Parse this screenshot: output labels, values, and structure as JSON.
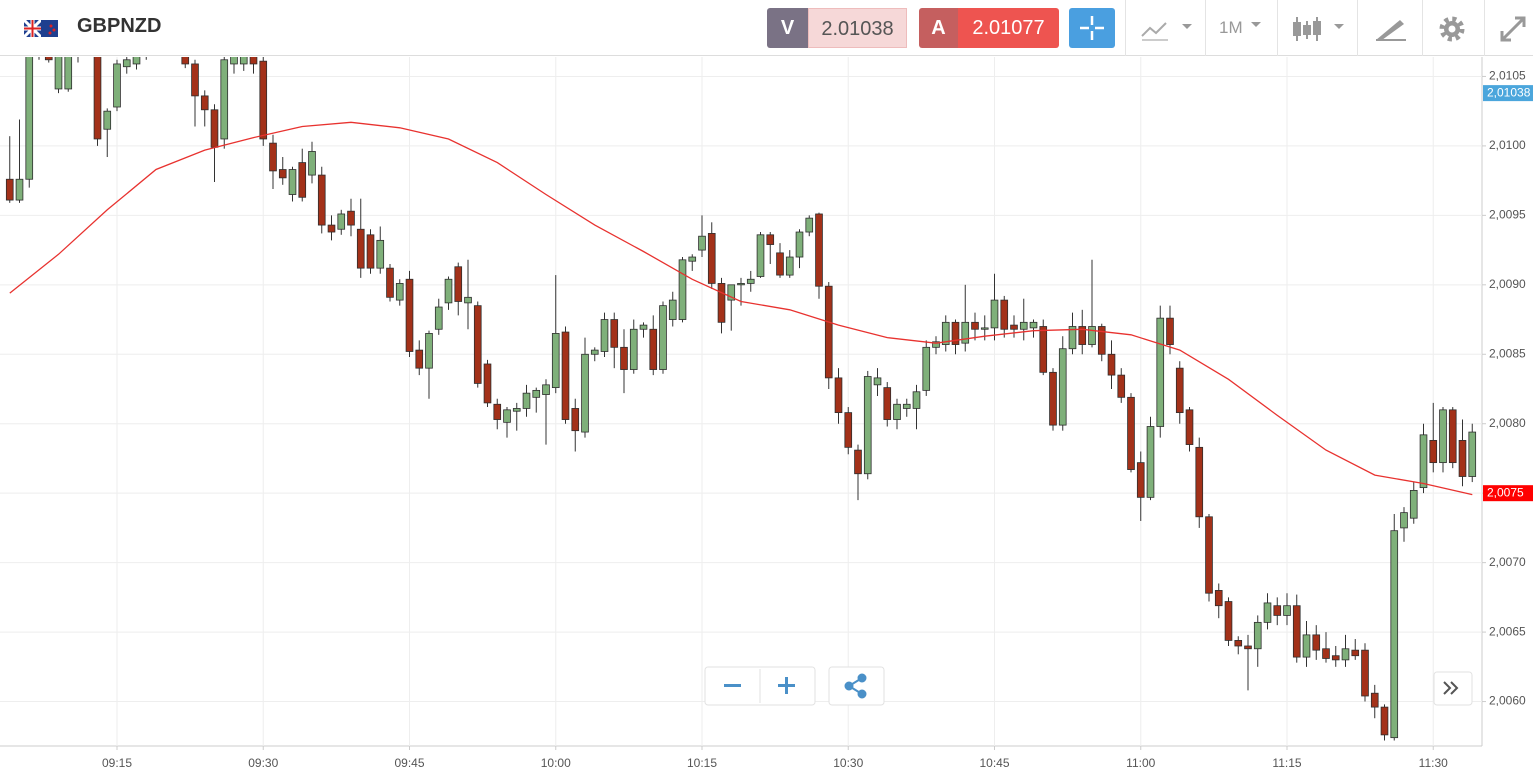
{
  "header": {
    "symbol": "GBPNZD",
    "sell": {
      "label": "V",
      "price": 2.01038
    },
    "buy": {
      "label": "A",
      "price": 2.01077
    },
    "timeframe": "1M"
  },
  "chart_data": {
    "type": "candlestick",
    "x": [
      "09:04",
      "09:05",
      "09:06",
      "09:07",
      "09:08",
      "09:09",
      "09:10",
      "09:11",
      "09:12",
      "09:13",
      "09:14",
      "09:15",
      "09:16",
      "09:17",
      "09:18",
      "09:19",
      "09:20",
      "09:21",
      "09:22",
      "09:23",
      "09:24",
      "09:25",
      "09:26",
      "09:27",
      "09:28",
      "09:29",
      "09:30",
      "09:31",
      "09:32",
      "09:33",
      "09:34",
      "09:35",
      "09:36",
      "09:37",
      "09:38",
      "09:39",
      "09:40",
      "09:41",
      "09:42",
      "09:43",
      "09:44",
      "09:45",
      "09:46",
      "09:47",
      "09:48",
      "09:49",
      "09:50",
      "09:51",
      "09:52",
      "09:53",
      "09:54",
      "09:55",
      "09:56",
      "09:57",
      "09:58",
      "09:59",
      "10:00",
      "10:01",
      "10:02",
      "10:03",
      "10:04",
      "10:05",
      "10:06",
      "10:07",
      "10:08",
      "10:09",
      "10:10",
      "10:11",
      "10:12",
      "10:13",
      "10:14",
      "10:15",
      "10:16",
      "10:17",
      "10:18",
      "10:19",
      "10:20",
      "10:21",
      "10:22",
      "10:23",
      "10:24",
      "10:25",
      "10:26",
      "10:27",
      "10:28",
      "10:29",
      "10:30",
      "10:31",
      "10:32",
      "10:33",
      "10:34",
      "10:35",
      "10:36",
      "10:37",
      "10:38",
      "10:39",
      "10:40",
      "10:41",
      "10:42",
      "10:43",
      "10:44",
      "10:45",
      "10:46",
      "10:47",
      "10:48",
      "10:49",
      "10:50",
      "10:51",
      "10:52",
      "10:53",
      "10:54",
      "10:55",
      "10:56",
      "10:57",
      "10:58",
      "10:59",
      "11:00",
      "11:01",
      "11:02",
      "11:03",
      "11:04",
      "11:05",
      "11:06",
      "11:07",
      "11:08",
      "11:09",
      "11:10",
      "11:11",
      "11:12",
      "11:13",
      "11:14",
      "11:15",
      "11:16",
      "11:17",
      "11:18",
      "11:19",
      "11:20",
      "11:21",
      "11:22",
      "11:23",
      "11:24",
      "11:25",
      "11:26",
      "11:27",
      "11:28",
      "11:29",
      "11:30",
      "11:31",
      "11:32",
      "11:33",
      "11:34"
    ],
    "open": [
      2.00976,
      2.00961,
      2.00976,
      2.0107,
      2.01085,
      2.01041,
      2.01041,
      2.01066,
      2.0108,
      2.0108,
      2.01012,
      2.01028,
      2.01057,
      2.01059,
      2.01066,
      2.0108,
      2.01094,
      2.01082,
      2.01072,
      2.01059,
      2.01036,
      2.01026,
      2.01005,
      2.01059,
      2.01059,
      2.01066,
      2.01061,
      2.01002,
      2.00983,
      2.00965,
      2.00988,
      2.00979,
      2.00979,
      2.00943,
      2.0094,
      2.00953,
      2.0094,
      2.00936,
      2.00912,
      2.00912,
      2.00889,
      2.00904,
      2.00853,
      2.0084,
      2.00868,
      2.00887,
      2.00913,
      2.00887,
      2.00885,
      2.00843,
      2.00814,
      2.00801,
      2.00809,
      2.00811,
      2.00819,
      2.00821,
      2.00826,
      2.00866,
      2.00811,
      2.00794,
      2.0085,
      2.00852,
      2.00875,
      2.00855,
      2.00839,
      2.00868,
      2.00868,
      2.00839,
      2.00875,
      2.00875,
      2.00917,
      2.00925,
      2.00937,
      2.00901,
      2.00889,
      2.009,
      2.00901,
      2.00906,
      2.00936,
      2.00923,
      2.00907,
      2.0092,
      2.00938,
      2.00951,
      2.00899,
      2.00833,
      2.00808,
      2.00781,
      2.00764,
      2.00828,
      2.00826,
      2.00803,
      2.00811,
      2.00811,
      2.00824,
      2.00855,
      2.00857,
      2.00873,
      2.00858,
      2.00873,
      2.00868,
      2.00869,
      2.00889,
      2.00871,
      2.00868,
      2.00869,
      2.0087,
      2.00837,
      2.00799,
      2.00854,
      2.0087,
      2.00857,
      2.0087,
      2.0085,
      2.00835,
      2.00819,
      2.00772,
      2.00747,
      2.00798,
      2.00876,
      2.0084,
      2.0081,
      2.00783,
      2.00733,
      2.0068,
      2.00672,
      2.00644,
      2.0064,
      2.00638,
      2.00657,
      2.00669,
      2.00662,
      2.00669,
      2.00632,
      2.00648,
      2.00638,
      2.00633,
      2.0063,
      2.00637,
      2.00637,
      2.00606,
      2.00596,
      2.00574,
      2.00725,
      2.00732,
      2.00754,
      2.00788,
      2.00772,
      2.0081,
      2.00788,
      2.00762
    ],
    "high": [
      2.01007,
      2.01019,
      2.01075,
      2.01095,
      2.0109,
      2.01072,
      2.01075,
      2.0109,
      2.01095,
      2.0109,
      2.01027,
      2.01062,
      2.01065,
      2.0107,
      2.0109,
      2.011,
      2.01102,
      2.0109,
      2.01076,
      2.01062,
      2.0104,
      2.0103,
      2.01068,
      2.01075,
      2.01072,
      2.01072,
      2.01066,
      2.01008,
      2.00992,
      2.00985,
      2.00998,
      2.01003,
      2.00985,
      2.0095,
      2.00954,
      2.00962,
      2.00962,
      2.0094,
      2.00942,
      2.00915,
      2.00904,
      2.0091,
      2.0086,
      2.00867,
      2.0089,
      2.00906,
      2.00916,
      2.00918,
      2.00888,
      2.00846,
      2.00818,
      2.00812,
      2.00815,
      2.00828,
      2.00826,
      2.00832,
      2.00907,
      2.0087,
      2.00818,
      2.00862,
      2.00855,
      2.0088,
      2.0088,
      2.00868,
      2.00875,
      2.00873,
      2.00878,
      2.00888,
      2.00895,
      2.0092,
      2.00922,
      2.0095,
      2.00945,
      2.00905,
      2.009,
      2.00905,
      2.0091,
      2.00938,
      2.00938,
      2.0093,
      2.00925,
      2.0094,
      2.0095,
      2.00952,
      2.00902,
      2.0084,
      2.00812,
      2.00785,
      2.00838,
      2.0084,
      2.0083,
      2.00818,
      2.00818,
      2.00828,
      2.0086,
      2.00863,
      2.00878,
      2.00875,
      2.009,
      2.0088,
      2.00878,
      2.00908,
      2.00892,
      2.00878,
      2.0089,
      2.00875,
      2.00875,
      2.0084,
      2.00863,
      2.0088,
      2.00882,
      2.00918,
      2.00872,
      2.0086,
      2.0084,
      2.00822,
      2.0078,
      2.00805,
      2.00885,
      2.00885,
      2.00845,
      2.00812,
      2.0079,
      2.00735,
      2.00685,
      2.00675,
      2.00647,
      2.00648,
      2.00662,
      2.00678,
      2.00675,
      2.00678,
      2.00677,
      2.00658,
      2.00655,
      2.0065,
      2.0064,
      2.00648,
      2.00645,
      2.00642,
      2.00612,
      2.00598,
      2.00735,
      2.0074,
      2.00758,
      2.008,
      2.00815,
      2.00812,
      2.00812,
      2.00803,
      2.008
    ],
    "low": [
      2.00959,
      2.00959,
      2.0097,
      2.01062,
      2.0106,
      2.01038,
      2.01039,
      2.0106,
      2.0107,
      2.01,
      2.00992,
      2.01025,
      2.01052,
      2.01055,
      2.01062,
      2.01072,
      2.01078,
      2.01068,
      2.01056,
      2.01014,
      2.01014,
      2.00974,
      2.00998,
      2.01052,
      2.01054,
      2.01052,
      2.01,
      2.00969,
      2.00972,
      2.0096,
      2.0096,
      2.00973,
      2.00937,
      2.00932,
      2.00936,
      2.00935,
      2.00905,
      2.00908,
      2.00908,
      2.00888,
      2.00885,
      2.00848,
      2.00835,
      2.00818,
      2.00864,
      2.00882,
      2.00878,
      2.00868,
      2.00826,
      2.00812,
      2.00796,
      2.0079,
      2.00795,
      2.00805,
      2.00808,
      2.00785,
      2.00822,
      2.008,
      2.0078,
      2.0079,
      2.00845,
      2.00848,
      2.0084,
      2.00822,
      2.00836,
      2.00862,
      2.00835,
      2.00836,
      2.0087,
      2.00873,
      2.0091,
      2.0092,
      2.00897,
      2.00865,
      2.00867,
      2.00885,
      2.00895,
      2.00905,
      2.00915,
      2.00905,
      2.00905,
      2.00912,
      2.00935,
      2.0089,
      2.00825,
      2.008,
      2.00778,
      2.00745,
      2.0076,
      2.0082,
      2.00798,
      2.00796,
      2.00805,
      2.00796,
      2.0082,
      2.0085,
      2.00852,
      2.0085,
      2.00852,
      2.0086,
      2.0086,
      2.0086,
      2.00862,
      2.00862,
      2.0086,
      2.00862,
      2.00835,
      2.00795,
      2.00795,
      2.0085,
      2.0085,
      2.00855,
      2.00845,
      2.00825,
      2.00815,
      2.00765,
      2.0073,
      2.00745,
      2.0079,
      2.0085,
      2.008,
      2.0078,
      2.00725,
      2.00672,
      2.0066,
      2.0064,
      2.00634,
      2.00608,
      2.00625,
      2.00652,
      2.00655,
      2.00655,
      2.00628,
      2.00625,
      2.0063,
      2.00628,
      2.00625,
      2.00625,
      2.0063,
      2.006,
      2.00588,
      2.00572,
      2.00572,
      2.00715,
      2.00728,
      2.0075,
      2.00765,
      2.00765,
      2.00768,
      2.00755,
      2.00758
    ],
    "close": [
      2.00961,
      2.00976,
      2.0107,
      2.01085,
      2.01062,
      2.01068,
      2.01066,
      2.0108,
      2.01088,
      2.01005,
      2.01025,
      2.01059,
      2.01062,
      2.01066,
      2.0108,
      2.01094,
      2.01082,
      2.01072,
      2.01059,
      2.01036,
      2.01026,
      2.00999,
      2.01062,
      2.01066,
      2.01066,
      2.01059,
      2.01005,
      2.00982,
      2.00977,
      2.00983,
      2.00963,
      2.00996,
      2.00943,
      2.00938,
      2.00951,
      2.00943,
      2.00912,
      2.00912,
      2.00932,
      2.00891,
      2.00901,
      2.00852,
      2.0084,
      2.00865,
      2.00884,
      2.00904,
      2.00888,
      2.00891,
      2.00829,
      2.00815,
      2.00803,
      2.0081,
      2.00811,
      2.00822,
      2.00824,
      2.00828,
      2.00865,
      2.00803,
      2.00795,
      2.0085,
      2.00853,
      2.00875,
      2.00855,
      2.00839,
      2.00868,
      2.00871,
      2.00839,
      2.00885,
      2.00889,
      2.00918,
      2.0092,
      2.00935,
      2.00901,
      2.00873,
      2.009,
      2.00901,
      2.00904,
      2.00936,
      2.00929,
      2.00907,
      2.0092,
      2.00938,
      2.00948,
      2.00899,
      2.00833,
      2.00808,
      2.00783,
      2.00764,
      2.00834,
      2.00833,
      2.00803,
      2.00814,
      2.00814,
      2.00823,
      2.00855,
      2.00859,
      2.00873,
      2.00857,
      2.00873,
      2.00868,
      2.00869,
      2.00889,
      2.00868,
      2.00868,
      2.00873,
      2.00873,
      2.00837,
      2.00799,
      2.00854,
      2.0087,
      2.00857,
      2.0087,
      2.0085,
      2.00835,
      2.00819,
      2.00767,
      2.00747,
      2.00798,
      2.00876,
      2.00857,
      2.00808,
      2.00785,
      2.00733,
      2.00678,
      2.00669,
      2.00644,
      2.0064,
      2.00638,
      2.00657,
      2.00671,
      2.00662,
      2.00669,
      2.00632,
      2.00648,
      2.00637,
      2.00631,
      2.0063,
      2.00638,
      2.00633,
      2.00604,
      2.00596,
      2.00576,
      2.00723,
      2.00736,
      2.00752,
      2.00792,
      2.00772,
      2.0081,
      2.00772,
      2.00762,
      2.00794
    ],
    "up_color": "#7fb07a",
    "down_color": "#a33119",
    "moving_average": {
      "color": "#e8322f",
      "x": [
        "09:04",
        "09:09",
        "09:14",
        "09:19",
        "09:24",
        "09:29",
        "09:34",
        "09:39",
        "09:44",
        "09:49",
        "09:54",
        "09:59",
        "10:04",
        "10:09",
        "10:14",
        "10:19",
        "10:24",
        "10:29",
        "10:34",
        "10:39",
        "10:44",
        "10:49",
        "10:54",
        "10:59",
        "11:04",
        "11:09",
        "11:14",
        "11:19",
        "11:24",
        "11:29",
        "11:34"
      ],
      "values": [
        2.00894,
        2.00922,
        2.00954,
        2.00983,
        2.00997,
        2.01006,
        2.01014,
        2.01017,
        2.01013,
        2.01005,
        2.00988,
        2.00965,
        2.00943,
        2.00924,
        2.00904,
        2.00888,
        2.00882,
        2.00871,
        2.00862,
        2.00858,
        2.00863,
        2.00867,
        2.00868,
        2.00864,
        2.00853,
        2.00832,
        2.00806,
        2.00781,
        2.00763,
        2.00757,
        2.00749
      ]
    },
    "xlim": [
      "09:03",
      "11:35"
    ],
    "xticks": [
      "09:15",
      "09:30",
      "09:45",
      "10:00",
      "10:15",
      "10:30",
      "10:45",
      "11:00",
      "11:15",
      "11:30"
    ],
    "ylim": [
      2.00568,
      2.01064
    ],
    "yticks": [
      {
        "value": 2.006,
        "label": "2,0060"
      },
      {
        "value": 2.0065,
        "label": "2,0065"
      },
      {
        "value": 2.007,
        "label": "2,0070"
      },
      {
        "value": 2.0075,
        "label": "2,0075"
      },
      {
        "value": 2.008,
        "label": "2,0080"
      },
      {
        "value": 2.0085,
        "label": "2,0085"
      },
      {
        "value": 2.009,
        "label": "2,0090"
      },
      {
        "value": 2.0095,
        "label": "2,0095"
      },
      {
        "value": 2.01,
        "label": "2,0100"
      },
      {
        "value": 2.0105,
        "label": "2,0105"
      }
    ],
    "price_tags": [
      {
        "value": 2.01038,
        "label": "2,01038",
        "color": "#4ba6dc"
      },
      {
        "value": 2.0075,
        "label": "2,0075",
        "color": "#ff0000"
      }
    ],
    "grid": true
  }
}
